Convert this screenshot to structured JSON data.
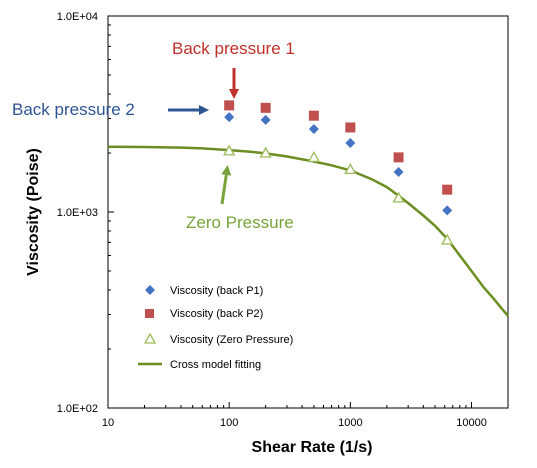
{
  "chart_data": {
    "type": "scatter",
    "xlabel": "Shear Rate (1/s)",
    "ylabel": "Viscosity (Poise)",
    "x_scale": "log",
    "y_scale": "log",
    "xlim": [
      10,
      20000
    ],
    "ylim": [
      100,
      10000
    ],
    "x_ticks": [
      10,
      100,
      1000,
      10000
    ],
    "x_tick_labels": [
      "10",
      "100",
      "1000",
      "10000"
    ],
    "y_ticks": [
      100,
      1000,
      10000
    ],
    "y_tick_labels": [
      "1.0E+02",
      "1.0E+03",
      "1.0E+04"
    ],
    "grid": false,
    "legend_position": "bottom-left",
    "series": [
      {
        "name": "Viscosity (back P1)",
        "marker": "diamond",
        "color": "#4472C4",
        "x": [
          100,
          200,
          500,
          1000,
          2500,
          6300
        ],
        "y": [
          3050,
          2950,
          2650,
          2250,
          1600,
          1020
        ]
      },
      {
        "name": "Viscosity (back P2)",
        "marker": "square",
        "color": "#C0504D",
        "x": [
          100,
          200,
          500,
          1000,
          2500,
          6300
        ],
        "y": [
          3500,
          3400,
          3100,
          2700,
          1900,
          1300
        ]
      },
      {
        "name": "Viscosity (Zero Pressure)",
        "marker": "triangle-open",
        "color": "#9BBB59",
        "x": [
          100,
          200,
          500,
          1000,
          2500,
          6300
        ],
        "y": [
          2050,
          2000,
          1900,
          1650,
          1180,
          720
        ]
      },
      {
        "name": "Cross model fitting",
        "marker": "line",
        "color": "#6B8E23",
        "x": [
          10,
          20,
          40,
          60,
          100,
          150,
          200,
          300,
          500,
          700,
          1000,
          1500,
          2000,
          2500,
          3000,
          4000,
          5000,
          6300,
          8000,
          10000,
          12500,
          15000,
          17500,
          20000
        ],
        "y": [
          2150,
          2145,
          2130,
          2110,
          2070,
          2030,
          1990,
          1920,
          1810,
          1730,
          1630,
          1470,
          1340,
          1210,
          1110,
          960,
          850,
          730,
          600,
          500,
          415,
          365,
          325,
          295
        ]
      }
    ],
    "annotations": [
      {
        "text": "Back pressure 1",
        "color": "#C0302A"
      },
      {
        "text": "Back pressure  2",
        "color": "#2E5496"
      },
      {
        "text": "Zero Pressure",
        "color": "#77A33A"
      }
    ]
  }
}
